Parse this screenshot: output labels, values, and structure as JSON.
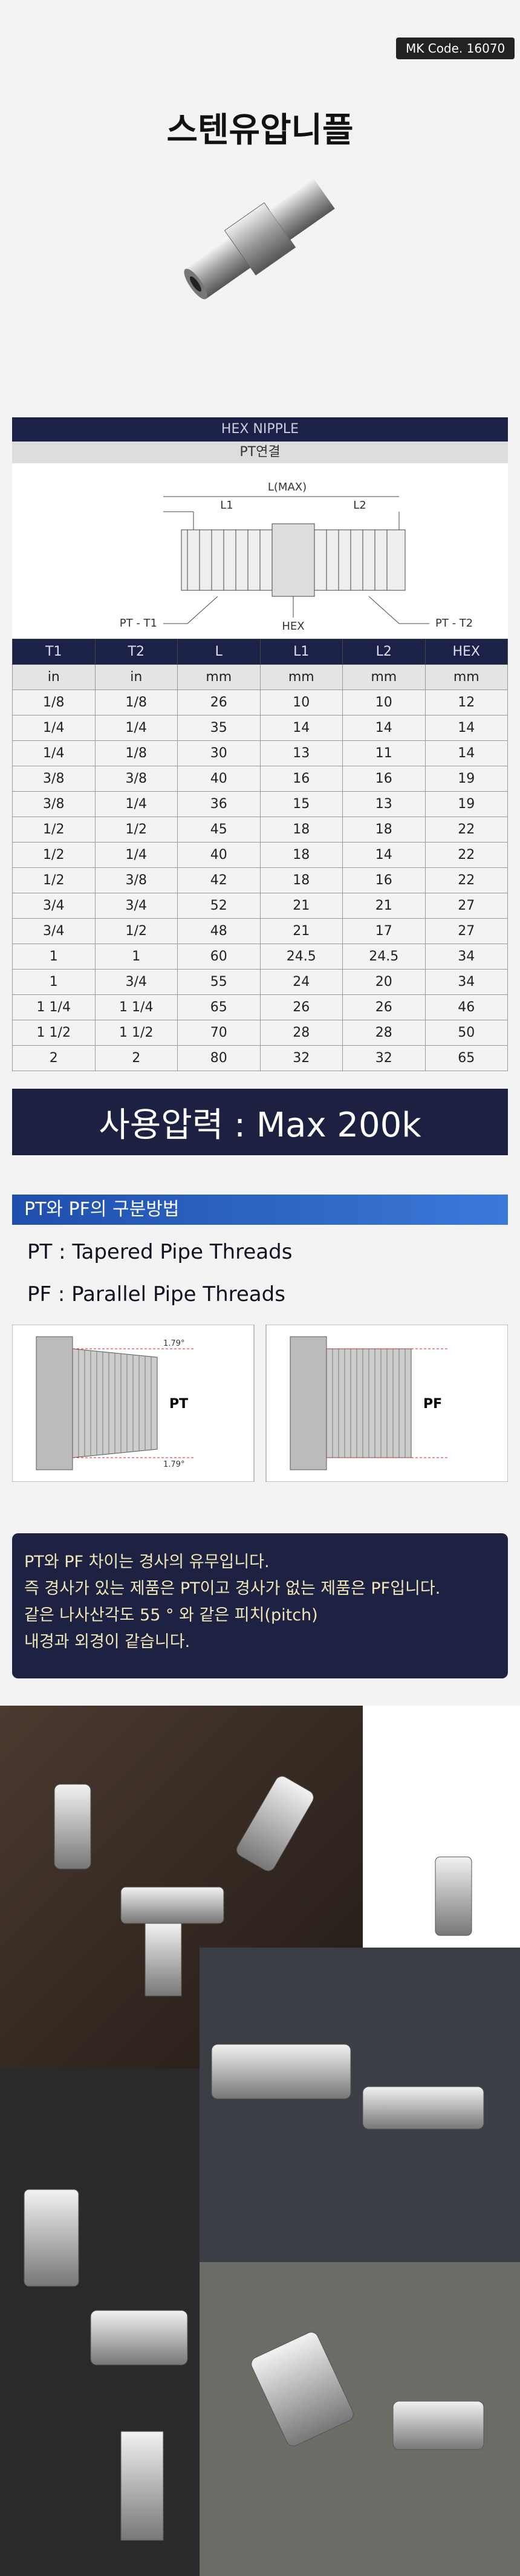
{
  "header": {
    "mk_code": "MK Code. 16070",
    "title": "스텐유압니플"
  },
  "table": {
    "title": "HEX NIPPLE",
    "subtitle": "PT연결",
    "diagram_labels": {
      "length": "L(MAX)",
      "l1": "L1",
      "l2": "L2",
      "t1": "PT - T1",
      "t2": "PT - T2",
      "hex": "HEX"
    },
    "columns": [
      "T1",
      "T2",
      "L",
      "L1",
      "L2",
      "HEX"
    ],
    "units": [
      "in",
      "in",
      "mm",
      "mm",
      "mm",
      "mm"
    ],
    "rows": [
      [
        "1/8",
        "1/8",
        "26",
        "10",
        "10",
        "12"
      ],
      [
        "1/4",
        "1/4",
        "35",
        "14",
        "14",
        "14"
      ],
      [
        "1/4",
        "1/8",
        "30",
        "13",
        "11",
        "14"
      ],
      [
        "3/8",
        "3/8",
        "40",
        "16",
        "16",
        "19"
      ],
      [
        "3/8",
        "1/4",
        "36",
        "15",
        "13",
        "19"
      ],
      [
        "1/2",
        "1/2",
        "45",
        "18",
        "18",
        "22"
      ],
      [
        "1/2",
        "1/4",
        "40",
        "18",
        "14",
        "22"
      ],
      [
        "1/2",
        "3/8",
        "42",
        "18",
        "16",
        "22"
      ],
      [
        "3/4",
        "3/4",
        "52",
        "21",
        "21",
        "27"
      ],
      [
        "3/4",
        "1/2",
        "48",
        "21",
        "17",
        "27"
      ],
      [
        "1",
        "1",
        "60",
        "24.5",
        "24.5",
        "34"
      ],
      [
        "1",
        "3/4",
        "55",
        "24",
        "20",
        "34"
      ],
      [
        "1 1/4",
        "1 1/4",
        "65",
        "26",
        "26",
        "46"
      ],
      [
        "1 1/2",
        "1 1/2",
        "70",
        "28",
        "28",
        "50"
      ],
      [
        "2",
        "2",
        "80",
        "32",
        "32",
        "65"
      ]
    ]
  },
  "pressure": "사용압력 : Max 200k",
  "pt_pf": {
    "title": "PT와 PF의 구분방법",
    "items": [
      "PT : Tapered Pipe Threads",
      "PF : Parallel Pipe Threads"
    ],
    "diagrams": [
      {
        "label": "PT",
        "angles": [
          "1.79°",
          "1.79°"
        ]
      },
      {
        "label": "PF"
      }
    ]
  },
  "note": [
    "PT와 PF 차이는 경사의 유무입니다.",
    "즉 경사가 있는 제품은 PT이고 경사가 없는 제품은 PF입니다.",
    "같은 나사산각도 55 ° 와 같은 피치(pitch)",
    "내경과 외경이 같습니다."
  ]
}
